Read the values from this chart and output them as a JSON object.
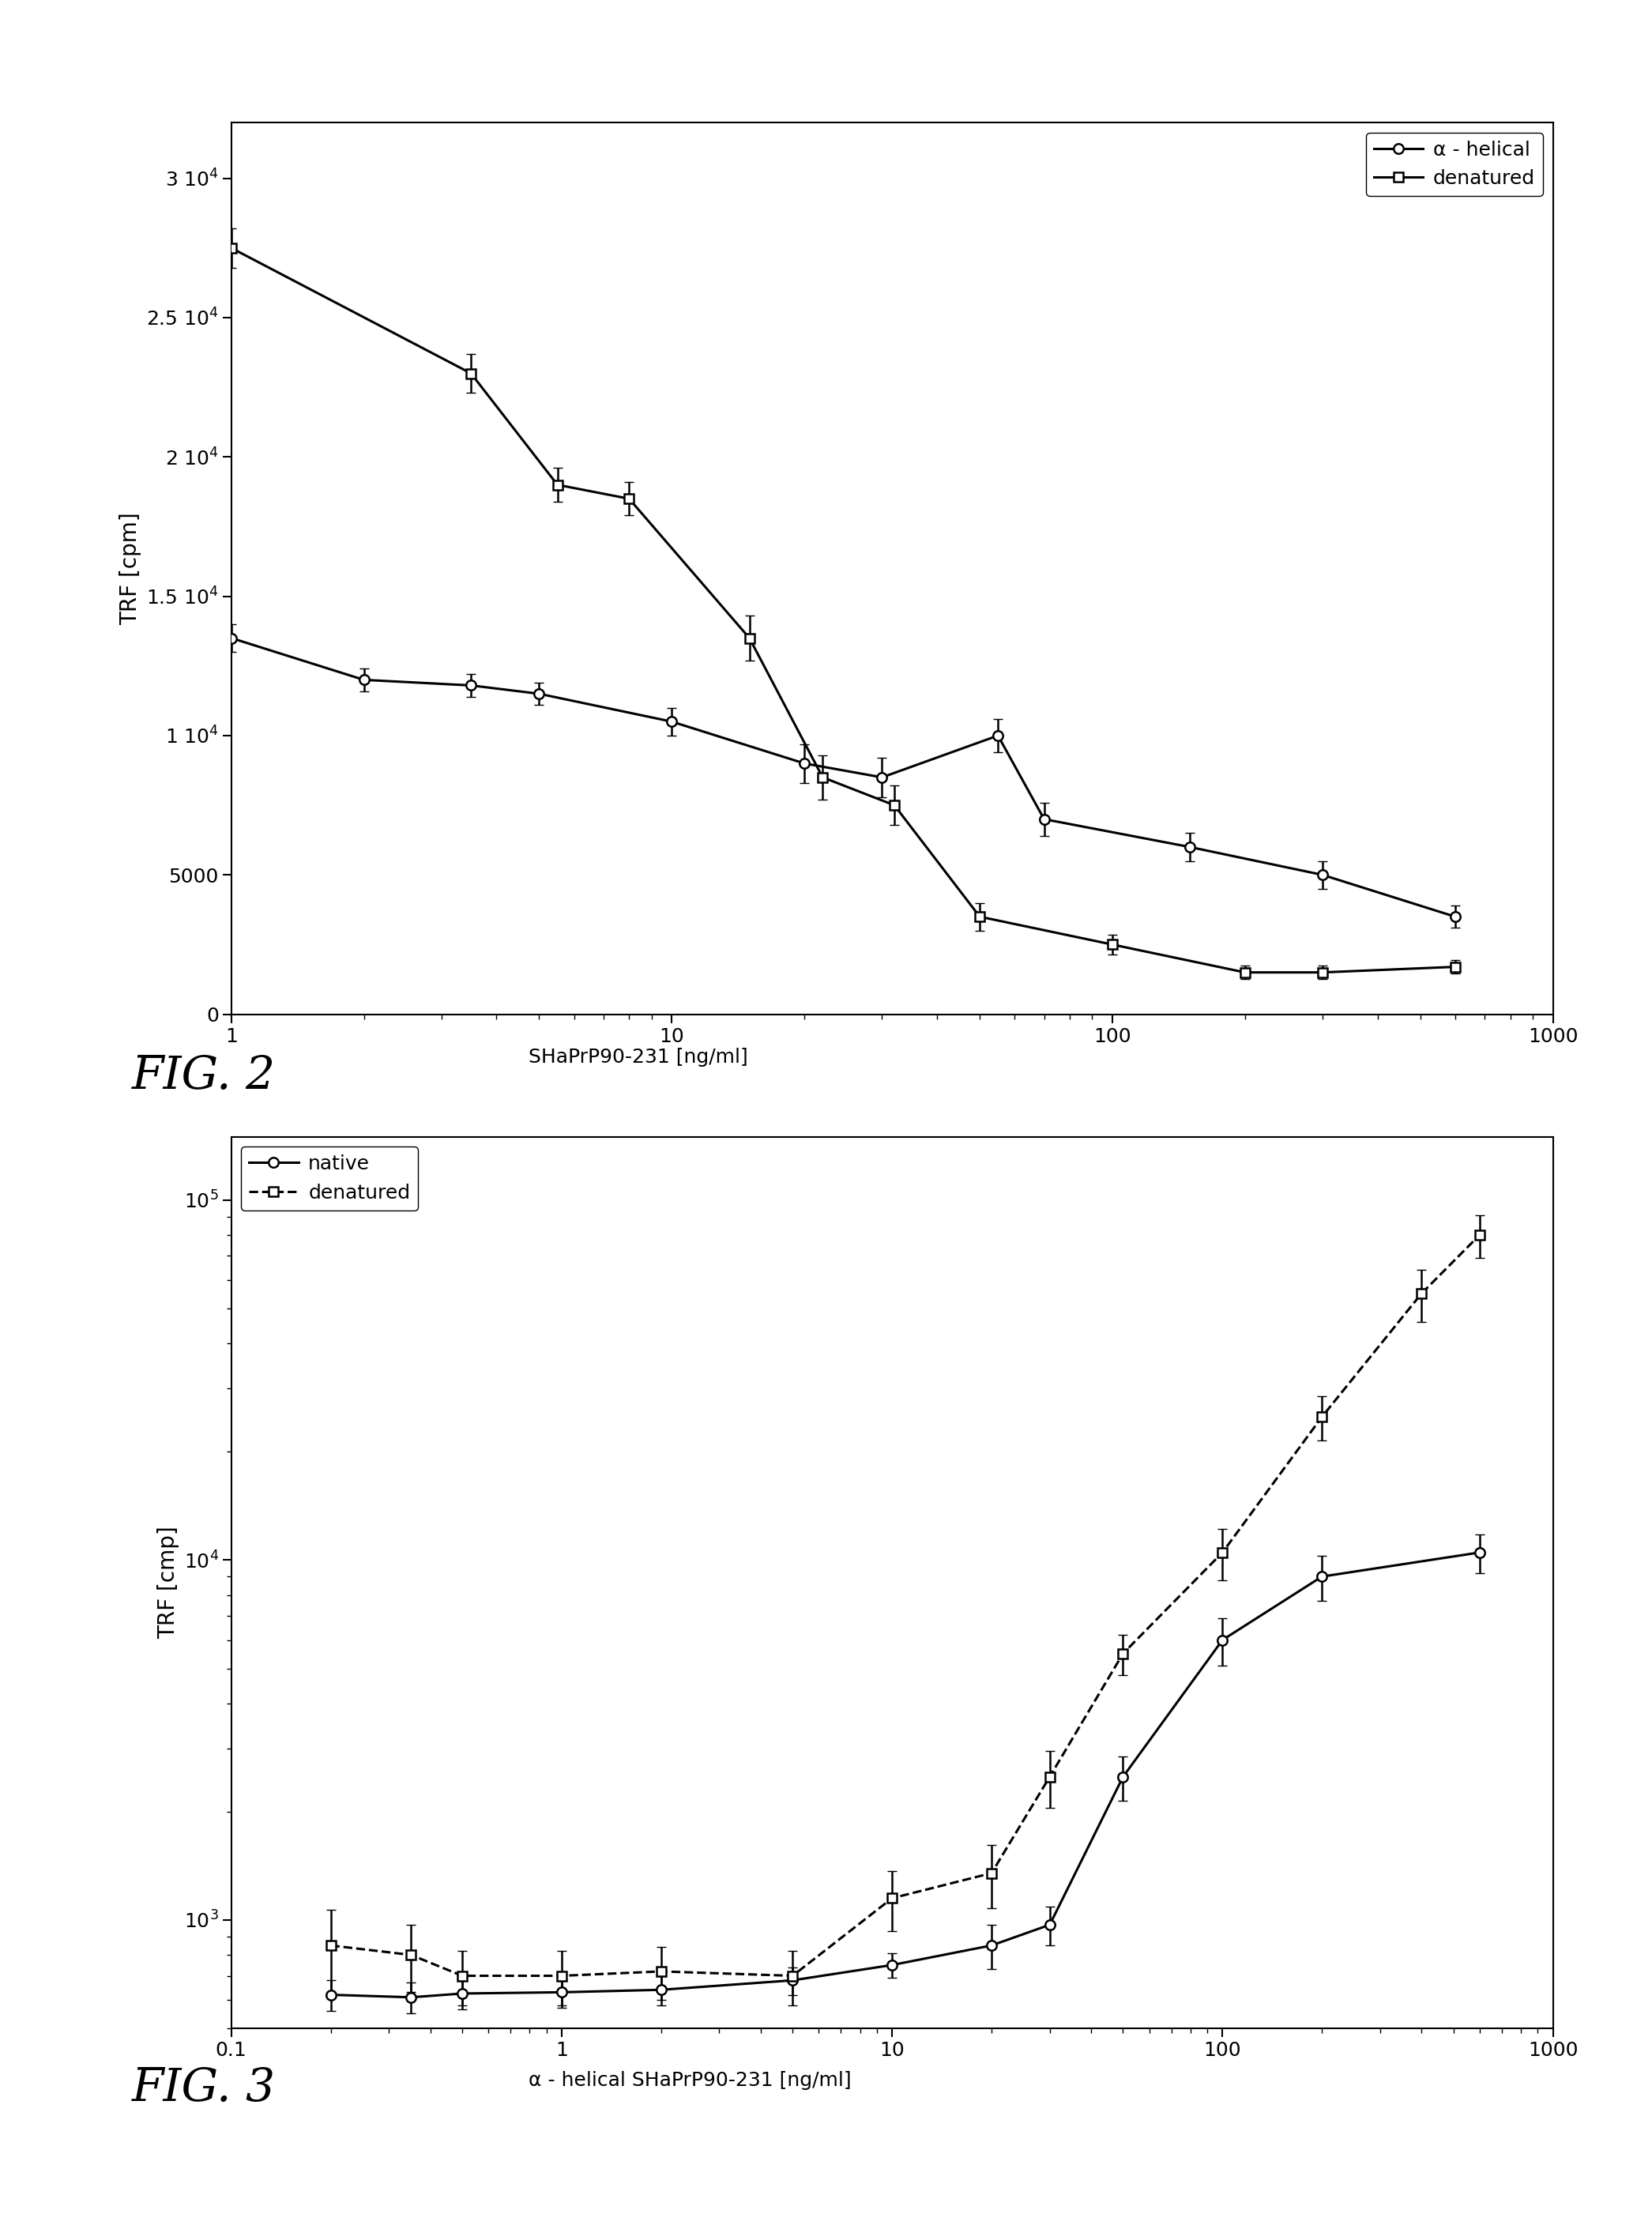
{
  "fig2": {
    "xlabel": "SHaPrP90-231 [ng/ml]",
    "ylabel": "TRF [cpm]",
    "alpha_helical": {
      "x": [
        1.0,
        2.0,
        3.5,
        5.0,
        10.0,
        20.0,
        30.0,
        55.0,
        70.0,
        150.0,
        300.0,
        600.0
      ],
      "y": [
        13500,
        12000,
        11800,
        11500,
        10500,
        9000,
        8500,
        10000,
        7000,
        6000,
        5000,
        3500
      ],
      "yerr": [
        500,
        400,
        400,
        400,
        500,
        700,
        700,
        600,
        600,
        500,
        500,
        400
      ],
      "label": "α - helical",
      "marker": "o"
    },
    "denatured": {
      "x": [
        1.0,
        3.5,
        5.5,
        8.0,
        15.0,
        22.0,
        32.0,
        50.0,
        100.0,
        200.0,
        300.0,
        600.0
      ],
      "y": [
        27500,
        23000,
        19000,
        18500,
        13500,
        8500,
        7500,
        3500,
        2500,
        1500,
        1500,
        1700
      ],
      "yerr": [
        700,
        700,
        600,
        600,
        800,
        800,
        700,
        500,
        350,
        250,
        250,
        250
      ],
      "label": "denatured",
      "marker": "s"
    },
    "xlim": [
      1,
      1000
    ],
    "ylim": [
      0,
      32000
    ],
    "yticks": [
      0,
      5000,
      10000,
      15000,
      20000,
      25000,
      30000
    ],
    "ytick_labels": [
      "0",
      "5000",
      "1 10$^4$",
      "1.5 10$^4$",
      "2 10$^4$",
      "2.5 10$^4$",
      "3 10$^4$"
    ],
    "fig_label": "FIG. 2"
  },
  "fig3": {
    "xlabel": "α - helical SHaPrP90-231 [ng/ml]",
    "ylabel": "TRF [cmp]",
    "native": {
      "x": [
        0.2,
        0.35,
        0.5,
        1.0,
        2.0,
        5.0,
        10.0,
        20.0,
        30.0,
        50.0,
        100.0,
        200.0,
        600.0
      ],
      "y": [
        620,
        610,
        625,
        630,
        640,
        680,
        750,
        850,
        970,
        2500,
        6000,
        9000,
        10500
      ],
      "yerr": [
        60,
        60,
        60,
        60,
        60,
        60,
        60,
        120,
        120,
        350,
        900,
        1300,
        1300
      ],
      "label": "native",
      "marker": "o"
    },
    "denatured": {
      "x": [
        0.2,
        0.35,
        0.5,
        1.0,
        2.0,
        5.0,
        10.0,
        20.0,
        30.0,
        50.0,
        100.0,
        200.0,
        400.0,
        600.0
      ],
      "y": [
        850,
        800,
        700,
        700,
        720,
        700,
        1150,
        1350,
        2500,
        5500,
        10500,
        25000,
        55000,
        80000
      ],
      "yerr": [
        220,
        170,
        120,
        120,
        120,
        120,
        220,
        270,
        450,
        700,
        1700,
        3500,
        9000,
        11000
      ],
      "label": "denatured",
      "marker": "s"
    },
    "xlim": [
      0.1,
      1000
    ],
    "ylim": [
      500,
      150000
    ],
    "fig_label": "FIG. 3"
  },
  "background_color": "#ffffff",
  "tick_fontsize": 18,
  "label_fontsize": 20,
  "legend_fontsize": 18,
  "fig_label_fontsize": 42,
  "sub_label_fontsize": 18,
  "linewidth": 2.2,
  "markersize": 9,
  "capsize": 4,
  "elinewidth": 1.8
}
